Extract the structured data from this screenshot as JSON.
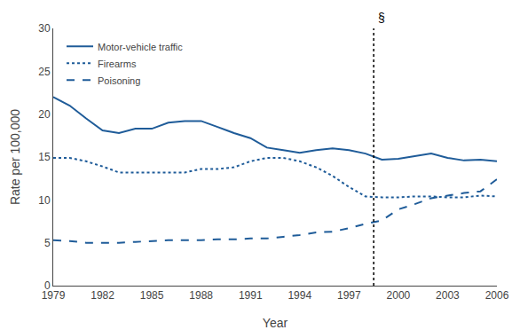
{
  "chart_data": {
    "type": "line",
    "x": [
      1979,
      1980,
      1981,
      1982,
      1983,
      1984,
      1985,
      1986,
      1987,
      1988,
      1989,
      1990,
      1991,
      1992,
      1993,
      1994,
      1995,
      1996,
      1997,
      1998,
      1999,
      2000,
      2001,
      2002,
      2003,
      2004,
      2005,
      2006
    ],
    "series": [
      {
        "name": "Motor-vehicle traffic",
        "color": "#1F5C99",
        "line_style": "solid",
        "values": [
          22.0,
          21.0,
          19.5,
          18.1,
          17.8,
          18.3,
          18.3,
          19.0,
          19.2,
          19.2,
          18.5,
          17.8,
          17.2,
          16.1,
          15.8,
          15.5,
          15.8,
          16.0,
          15.8,
          15.4,
          14.7,
          14.8,
          15.1,
          15.4,
          14.9,
          14.6,
          14.7,
          14.5
        ]
      },
      {
        "name": "Firearms",
        "color": "#1F5C99",
        "line_style": "dotted",
        "values": [
          14.9,
          14.9,
          14.5,
          13.9,
          13.2,
          13.2,
          13.2,
          13.2,
          13.2,
          13.6,
          13.6,
          13.8,
          14.5,
          14.9,
          14.9,
          14.5,
          13.8,
          12.8,
          11.5,
          10.4,
          10.3,
          10.3,
          10.4,
          10.4,
          10.3,
          10.3,
          10.5,
          10.4
        ]
      },
      {
        "name": "Poisoning",
        "color": "#1F5C99",
        "line_style": "dashed",
        "values": [
          5.3,
          5.2,
          5.0,
          5.0,
          5.0,
          5.1,
          5.2,
          5.3,
          5.3,
          5.3,
          5.4,
          5.4,
          5.5,
          5.5,
          5.7,
          5.9,
          6.2,
          6.3,
          6.7,
          7.2,
          7.6,
          8.9,
          9.5,
          10.2,
          10.5,
          10.8,
          11.0,
          12.4
        ]
      }
    ],
    "vlines": [
      {
        "x": 1998.5,
        "color": "black",
        "line_style": "dotted"
      }
    ],
    "annotations": [
      {
        "text": "§",
        "x": 1998.5,
        "y": 30
      }
    ],
    "xlabel": "Year",
    "ylabel": "Rate per 100,000",
    "xlim": [
      1979,
      2006
    ],
    "xticks": [
      1979,
      1982,
      1985,
      1988,
      1991,
      1994,
      1997,
      2000,
      2003,
      2006
    ],
    "ylim": [
      0,
      30
    ],
    "yticks": [
      0,
      5,
      10,
      15,
      20,
      25,
      30
    ],
    "grid": false,
    "legend": "upper left"
  }
}
